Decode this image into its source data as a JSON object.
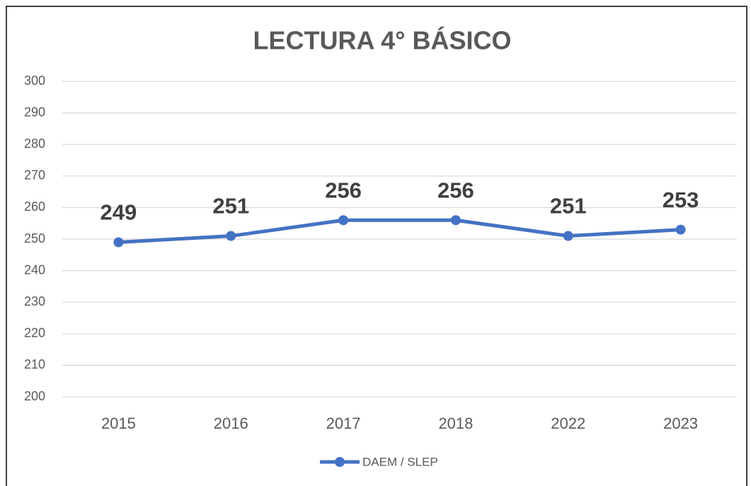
{
  "chart_data": {
    "type": "line",
    "title": "LECTURA 4° BÁSICO",
    "categories": [
      "2015",
      "2016",
      "2017",
      "2018",
      "2022",
      "2023"
    ],
    "series": [
      {
        "name": "DAEM / SLEP",
        "color": "#4472c4",
        "values": [
          249,
          251,
          256,
          256,
          251,
          253
        ]
      }
    ],
    "ylim": [
      200,
      300
    ],
    "yticks": [
      200,
      210,
      220,
      230,
      240,
      250,
      260,
      270,
      280,
      290,
      300
    ],
    "grid": true,
    "legend": "bottom"
  }
}
